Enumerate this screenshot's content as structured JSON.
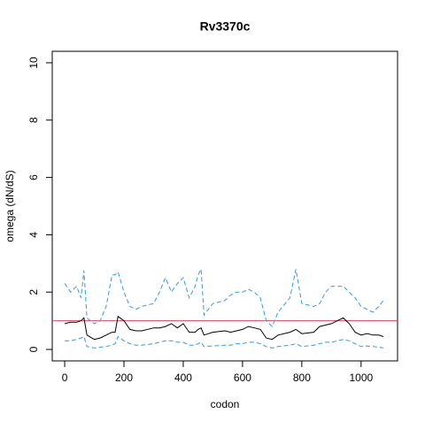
{
  "chart_data": {
    "type": "line",
    "title": "Rv3370c",
    "x_label": "codon",
    "y_label": "omega (dN/dS)",
    "x": [
      0,
      20,
      40,
      55,
      65,
      75,
      100,
      120,
      140,
      160,
      170,
      180,
      200,
      220,
      240,
      260,
      300,
      320,
      340,
      360,
      380,
      400,
      420,
      440,
      450,
      460,
      470,
      500,
      540,
      560,
      580,
      600,
      620,
      640,
      660,
      680,
      700,
      720,
      760,
      780,
      800,
      840,
      860,
      880,
      900,
      920,
      940,
      960,
      980,
      1000,
      1020,
      1040,
      1060,
      1075
    ],
    "series": [
      {
        "color": "#000000",
        "dashed": false,
        "values": [
          0.9,
          0.95,
          0.95,
          1.0,
          1.1,
          0.5,
          0.35,
          0.4,
          0.5,
          0.6,
          0.6,
          1.15,
          1.0,
          0.7,
          0.65,
          0.65,
          0.75,
          0.75,
          0.8,
          0.9,
          0.75,
          0.9,
          0.6,
          0.6,
          0.7,
          0.75,
          0.5,
          0.6,
          0.65,
          0.6,
          0.65,
          0.7,
          0.8,
          0.75,
          0.7,
          0.4,
          0.35,
          0.5,
          0.6,
          0.7,
          0.55,
          0.6,
          0.8,
          0.85,
          0.9,
          1.0,
          1.1,
          0.9,
          0.6,
          0.5,
          0.55,
          0.5,
          0.5,
          0.45
        ]
      },
      {
        "color": "#3399dd",
        "dashed": true,
        "values": [
          2.3,
          2.0,
          2.2,
          1.8,
          2.75,
          1.1,
          0.9,
          1.0,
          1.5,
          2.6,
          2.6,
          2.7,
          2.0,
          1.5,
          1.4,
          1.5,
          1.6,
          2.0,
          2.5,
          2.0,
          2.3,
          2.5,
          1.8,
          2.2,
          2.6,
          2.8,
          1.2,
          1.6,
          1.7,
          1.9,
          2.0,
          2.0,
          2.1,
          2.0,
          1.8,
          1.0,
          0.8,
          1.3,
          1.8,
          2.8,
          1.6,
          1.5,
          1.6,
          2.0,
          2.2,
          2.2,
          2.2,
          2.0,
          1.8,
          1.5,
          1.4,
          1.3,
          1.5,
          1.7
        ]
      },
      {
        "color": "#3399dd",
        "dashed": true,
        "values": [
          0.3,
          0.3,
          0.35,
          0.4,
          0.45,
          0.1,
          0.05,
          0.08,
          0.1,
          0.15,
          0.2,
          0.45,
          0.3,
          0.2,
          0.15,
          0.15,
          0.2,
          0.25,
          0.3,
          0.3,
          0.25,
          0.25,
          0.15,
          0.15,
          0.2,
          0.25,
          0.1,
          0.12,
          0.15,
          0.15,
          0.2,
          0.2,
          0.25,
          0.25,
          0.2,
          0.1,
          0.05,
          0.1,
          0.15,
          0.2,
          0.1,
          0.15,
          0.2,
          0.25,
          0.25,
          0.3,
          0.35,
          0.3,
          0.2,
          0.1,
          0.12,
          0.1,
          0.08,
          0.05
        ]
      }
    ],
    "reference_line": 1,
    "reference_color": "#dd4466",
    "xlim": [
      -42,
      1123
    ],
    "ylim": [
      -0.4,
      10.4
    ],
    "xticks": [
      0,
      200,
      400,
      600,
      800,
      1000
    ],
    "yticks": [
      0,
      2,
      4,
      6,
      8,
      10
    ]
  }
}
